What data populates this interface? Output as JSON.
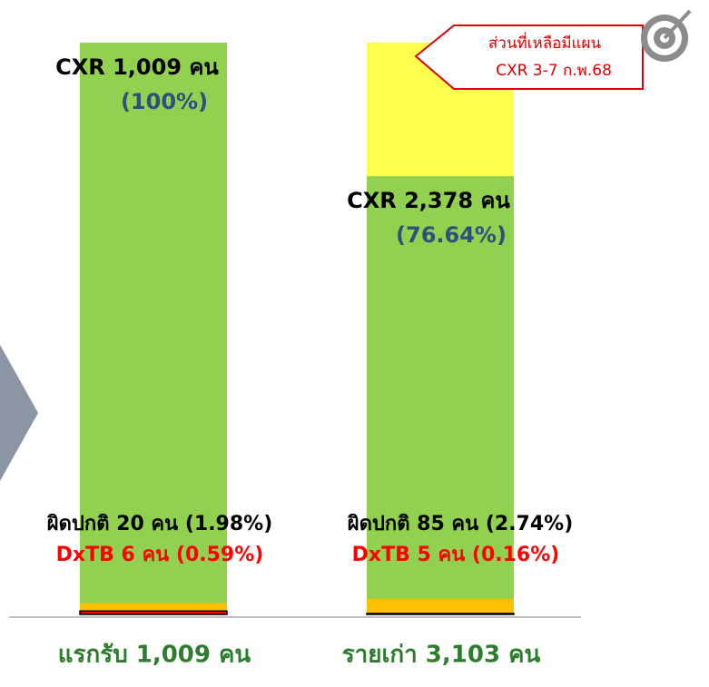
{
  "chart_data": {
    "type": "bar",
    "categories": [
      "แรกรับ 1,009 คน",
      "รายเก่า 3,103 คน"
    ],
    "ylim": [
      0,
      100
    ],
    "remaining_color": "#ffff4d",
    "series": [
      {
        "color": "#92d050",
        "labels": [
          "CXR 1,009 คน",
          "CXR 2,378 คน"
        ],
        "values": [
          100,
          76.64
        ],
        "value_labels": [
          "(100%)",
          "(76.64%)"
        ]
      },
      {
        "color": "#ffc000",
        "values": [
          1.98,
          2.74
        ],
        "value_labels": [
          "ผิดปกติ 20 คน (1.98%)",
          "ผิดปกติ 85 คน (2.74%)"
        ]
      },
      {
        "color": "#ff0000",
        "values": [
          0.59,
          0.16
        ],
        "value_labels": [
          "DxTB 6 คน (0.59%)",
          "DxTB 5 คน (0.16%)"
        ]
      }
    ],
    "callout": [
      "ส่วนที่เหลือมีแผน",
      "CXR 3-7 ก.พ.68"
    ]
  }
}
